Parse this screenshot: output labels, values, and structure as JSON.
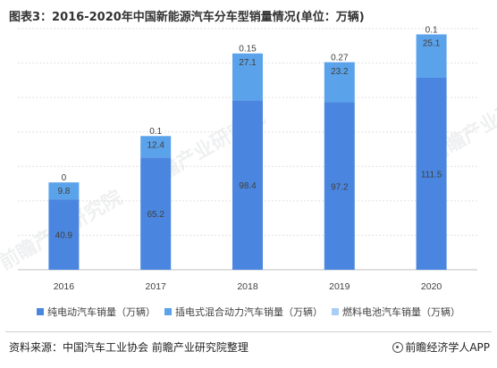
{
  "page": {
    "title": "图表3：2016-2020年中国新能源汽车分车型销量情况(单位：万辆)",
    "source": "资料来源：中国汽车工业协会 前瞻产业研究院整理",
    "brand": "前瞻经济学人APP",
    "watermark": "前瞻产业研究院"
  },
  "colors": {
    "series": [
      "#4a86e0",
      "#5aa2ea",
      "#a9cdf4"
    ]
  },
  "chart_data": {
    "type": "bar",
    "stacked": true,
    "title": "图表3：2016-2020年中国新能源汽车分车型销量情况(单位：万辆)",
    "xlabel": "",
    "ylabel": "",
    "ylim": [
      0,
      140
    ],
    "grid": true,
    "legend_position": "bottom",
    "categories": [
      "2016",
      "2017",
      "2018",
      "2019",
      "2020"
    ],
    "series": [
      {
        "name": "纯电动汽车销量（万辆）",
        "values": [
          40.9,
          65.2,
          98.4,
          97.2,
          111.5
        ],
        "labels": [
          "40.9",
          "65.2",
          "98.4",
          "97.2",
          "111.5"
        ]
      },
      {
        "name": "插电式混合动力汽车销量（万辆）",
        "values": [
          9.8,
          12.4,
          27.1,
          23.2,
          25.1
        ],
        "labels": [
          "9.8",
          "12.4",
          "27.1",
          "23.2",
          "25.1"
        ]
      },
      {
        "name": "燃料电池汽车销量（万辆）",
        "values": [
          0,
          0.1,
          0.15,
          0.27,
          0.1
        ],
        "labels": [
          "0",
          "0.1",
          "0.15",
          "0.27",
          "0.1"
        ]
      }
    ]
  }
}
